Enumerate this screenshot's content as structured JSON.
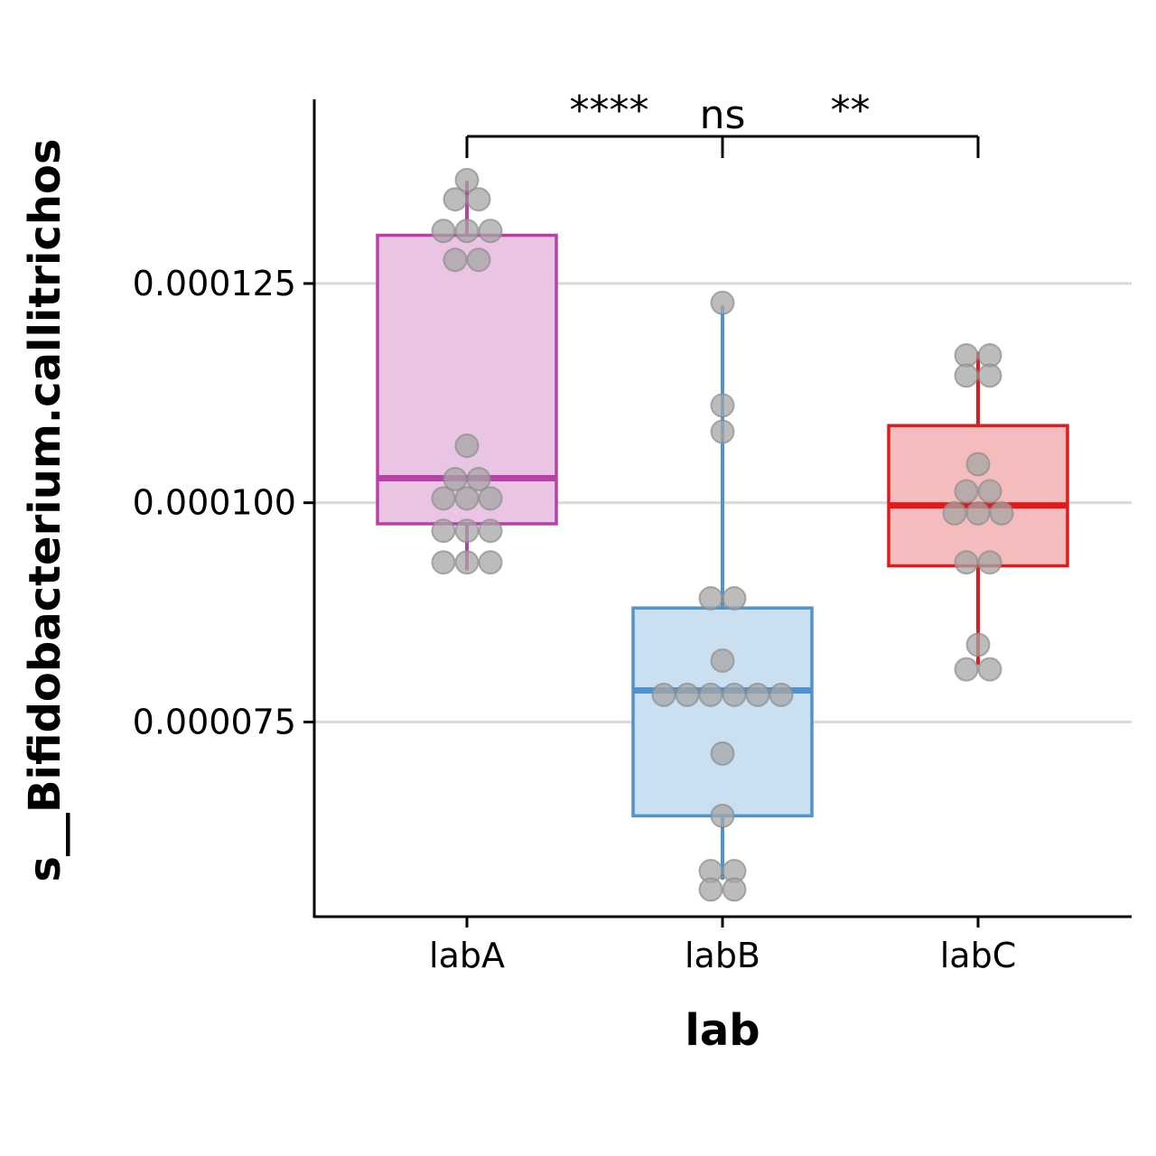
{
  "chart_data": {
    "type": "boxplot",
    "xlabel": "lab",
    "ylabel": "s__Bifidobacterium.callitrichos",
    "ylim": [
      5.28e-05,
      0.000146
    ],
    "yticks": [
      {
        "value": 7.5e-05,
        "label": "0.000075"
      },
      {
        "value": 0.0001,
        "label": "0.000100"
      },
      {
        "value": 0.000125,
        "label": "0.000125"
      }
    ],
    "grid": "horizontal",
    "categories": [
      "labA",
      "labB",
      "labC"
    ],
    "groups": [
      {
        "name": "labA",
        "color": "#b940a6",
        "fill": "#e9c4e3",
        "whisker_low": 9.23e-05,
        "q1": 9.76e-05,
        "median": 0.0001028,
        "q3": 0.0001305,
        "whisker_high": 0.0001367,
        "points": [
          0.0001368,
          0.0001346,
          0.0001346,
          0.000131,
          0.000131,
          0.000131,
          0.0001277,
          0.0001277,
          0.0001065,
          0.0001027,
          0.0001027,
          0.0001005,
          0.0001005,
          0.0001005,
          9.68e-05,
          9.68e-05,
          9.68e-05,
          9.32e-05,
          9.32e-05,
          9.32e-05
        ]
      },
      {
        "name": "labB",
        "color": "#4f93cf",
        "fill": "#cadff0",
        "whisker_low": 5.7e-05,
        "q1": 6.43e-05,
        "median": 7.86e-05,
        "q3": 8.8e-05,
        "whisker_high": 0.0001225,
        "points": [
          0.0001228,
          0.0001111,
          0.0001081,
          8.91e-05,
          8.91e-05,
          8.2e-05,
          7.81e-05,
          7.81e-05,
          7.81e-05,
          7.81e-05,
          7.81e-05,
          7.81e-05,
          7.14e-05,
          6.43e-05,
          5.8e-05,
          5.8e-05,
          5.59e-05,
          5.59e-05
        ]
      },
      {
        "name": "labC",
        "color": "#e31a1c",
        "fill": "#f5bcbd",
        "whisker_low": 8.15e-05,
        "q1": 9.28e-05,
        "median": 9.97e-05,
        "q3": 0.0001088,
        "whisker_high": 0.0001172,
        "points": [
          0.0001168,
          0.0001168,
          0.0001145,
          0.0001145,
          0.0001044,
          0.0001013,
          0.0001013,
          9.88e-05,
          9.88e-05,
          9.88e-05,
          9.32e-05,
          9.32e-05,
          8.38e-05,
          8.1e-05,
          8.1e-05
        ]
      }
    ],
    "point_color": "#a6a6a6",
    "comparisons": [
      {
        "label": "****",
        "from": "labA",
        "to": "labB"
      },
      {
        "label": "ns",
        "from": "labB",
        "to": "labB"
      },
      {
        "label": "**",
        "from": "labB",
        "to": "labC"
      }
    ]
  }
}
